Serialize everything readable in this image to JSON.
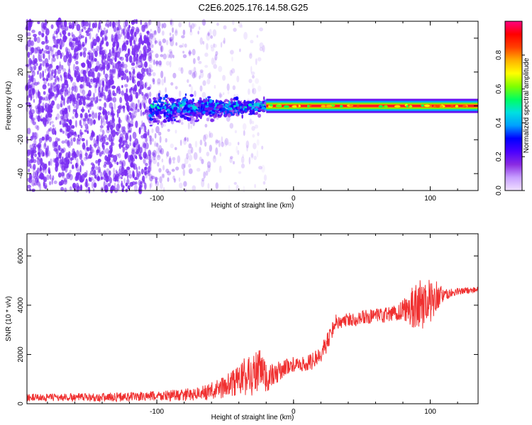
{
  "title": "C2E6.2025.176.14.58.G25",
  "colors": {
    "spectrogram_scatter": "#7a2cf2",
    "snr_line": "#f03030"
  },
  "chart_data": [
    {
      "type": "heatmap",
      "xlabel": "Height of straight line (km)",
      "ylabel": "Frequency (Hz)",
      "xlim": [
        -195,
        135
      ],
      "ylim": [
        -50,
        50
      ],
      "xticks": [
        -100,
        0,
        100
      ],
      "yticks": [
        -40,
        -20,
        0,
        20,
        40
      ],
      "colorbar": {
        "label": "Normalized spectral amplitude",
        "range": [
          0,
          1
        ],
        "ticks": [
          "0.0",
          "0.2",
          "0.4",
          "0.6",
          "0.8"
        ],
        "colormap": [
          "#f0e0ff",
          "#c8a0ff",
          "#8a2be2",
          "#4a00ff",
          "#0000ff",
          "#00a0ff",
          "#00e0e0",
          "#00ff60",
          "#80ff00",
          "#ffff00",
          "#ffb000",
          "#ff4000",
          "#ff0000",
          "#ff0080"
        ]
      },
      "regions": [
        {
          "name": "noise",
          "x": [
            -195,
            -105
          ],
          "freq_range": [
            -50,
            50
          ],
          "amplitude": 0.1
        },
        {
          "name": "sparse noise",
          "x": [
            -105,
            -20
          ],
          "freq_range": [
            -50,
            50
          ],
          "amplitude": 0.03
        },
        {
          "name": "doppler signal",
          "x": [
            -105,
            -20
          ],
          "center_freq": 0,
          "spread": 6,
          "amplitude": 0.35
        },
        {
          "name": "carrier line",
          "x": [
            -20,
            135
          ],
          "center_freq": 0,
          "spread": 2,
          "amplitude": 0.95
        }
      ]
    },
    {
      "type": "line",
      "xlabel": "Height of straight line (km)",
      "ylabel": "SNR (10 * v/v)",
      "xlim": [
        -195,
        135
      ],
      "ylim": [
        0,
        6900
      ],
      "xticks": [
        -100,
        0,
        100
      ],
      "yticks": [
        0,
        2000,
        4000,
        6000
      ],
      "series": [
        {
          "x": [
            -195,
            -150,
            -110,
            -80,
            -65,
            -55,
            -45,
            -40,
            -35,
            -30,
            -25,
            -20,
            -15,
            -10,
            -5,
            0,
            5,
            10,
            15,
            20,
            25,
            30,
            40,
            50,
            60,
            70,
            80,
            85,
            90,
            95,
            100,
            105,
            110,
            120,
            135
          ],
          "y": [
            250,
            260,
            290,
            350,
            450,
            600,
            800,
            1000,
            1100,
            1200,
            1300,
            1050,
            1100,
            1350,
            1500,
            1600,
            1550,
            1650,
            1750,
            2100,
            2500,
            3300,
            3400,
            3500,
            3550,
            3600,
            3800,
            3900,
            4000,
            4050,
            4200,
            4400,
            4400,
            4550,
            4650
          ],
          "noise": [
            150,
            170,
            200,
            250,
            300,
            400,
            550,
            700,
            850,
            900,
            1000,
            700,
            500,
            400,
            350,
            300,
            300,
            350,
            350,
            400,
            400,
            350,
            300,
            300,
            300,
            350,
            450,
            800,
            1000,
            1000,
            900,
            600,
            250,
            150,
            100
          ]
        }
      ]
    }
  ]
}
